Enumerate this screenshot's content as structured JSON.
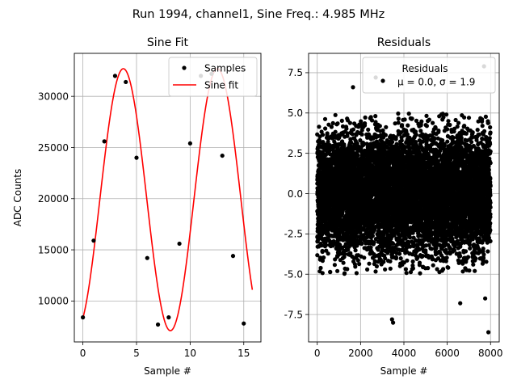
{
  "suptitle": "Run 1994, channel1, Sine Freq.: 4.985 MHz",
  "colors": {
    "samples": "#000000",
    "fit": "#ff0000",
    "grid": "#b0b0b0",
    "residuals": "#000000"
  },
  "chart_data": [
    {
      "type": "scatter",
      "title": "Sine Fit",
      "xlabel": "Sample #",
      "ylabel": "ADC Counts",
      "xlim": [
        -0.8,
        16.6
      ],
      "ylim": [
        6000,
        34200
      ],
      "xticks": [
        0,
        5,
        10,
        15
      ],
      "yticks": [
        10000,
        15000,
        20000,
        25000,
        30000
      ],
      "grid": true,
      "legend_position": "top-right",
      "legend": [
        "Samples",
        "Sine fit"
      ],
      "series": [
        {
          "name": "Samples",
          "kind": "points",
          "x": [
            0,
            1,
            2,
            3,
            4,
            5,
            6,
            7,
            8,
            9,
            10,
            11,
            12,
            13,
            14,
            15
          ],
          "y": [
            8400,
            15900,
            25600,
            32000,
            31400,
            24000,
            14200,
            7700,
            8400,
            15600,
            25400,
            32000,
            32200,
            24200,
            14400,
            7800
          ]
        },
        {
          "name": "Sine fit",
          "kind": "line",
          "model": {
            "offset": 19900,
            "amplitude": 12800,
            "period": 8.775,
            "phase_rad": -1.13,
            "x_start": 0,
            "x_end": 15.8
          }
        }
      ]
    },
    {
      "type": "scatter",
      "title": "Residuals",
      "xlabel": "Sample #",
      "xlim": [
        -400,
        8400
      ],
      "ylim": [
        -9.2,
        8.7
      ],
      "xticks": [
        0,
        2000,
        4000,
        6000,
        8000
      ],
      "yticks": [
        -7.5,
        -5.0,
        -2.5,
        0.0,
        2.5,
        5.0,
        7.5
      ],
      "grid": true,
      "legend_position": "top-right",
      "legend_title": "Residuals",
      "legend_label": "μ = 0.0, σ = 1.9",
      "residual_stats": {
        "n": 8000,
        "mean": 0.0,
        "std": 1.9
      },
      "notable_points": [
        {
          "x": 1650,
          "y": 6.6
        },
        {
          "x": 2700,
          "y": 7.2
        },
        {
          "x": 3450,
          "y": -7.8
        },
        {
          "x": 3500,
          "y": -8.0
        },
        {
          "x": 6600,
          "y": -6.8
        },
        {
          "x": 7700,
          "y": 7.9
        },
        {
          "x": 7750,
          "y": -6.5
        },
        {
          "x": 7900,
          "y": -8.6
        }
      ]
    }
  ]
}
